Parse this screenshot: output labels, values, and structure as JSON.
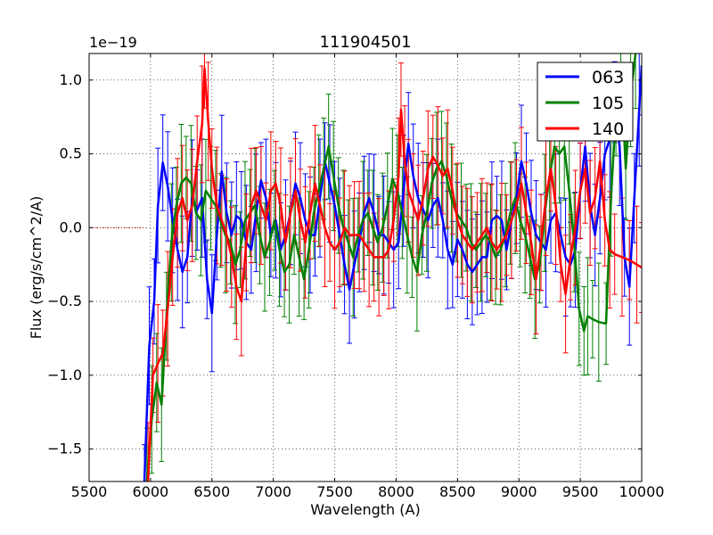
{
  "chart_data": {
    "type": "line",
    "title": "111904501",
    "xlabel": "Wavelength (A)",
    "ylabel": "Flux (erg/s/cm^2/A)",
    "offset_text": "1e−19",
    "xlim": [
      5500,
      10000
    ],
    "ylim": [
      -1.72,
      1.18
    ],
    "x_ticks": [
      5500,
      6000,
      6500,
      7000,
      7500,
      8000,
      8500,
      9000,
      9500,
      10000
    ],
    "x_tick_labels": [
      "5500",
      "6000",
      "6500",
      "7000",
      "7500",
      "8000",
      "8500",
      "9000",
      "9500",
      "10000"
    ],
    "y_ticks": [
      -1.5,
      -1.0,
      -0.5,
      0.0,
      0.5,
      1.0
    ],
    "y_tick_labels": [
      "−1.5",
      "−1.0",
      "−0.5",
      "0.0",
      "0.5",
      "1.0"
    ],
    "grid": true,
    "legend_position": "top-right",
    "reference_line": {
      "y": 0.0,
      "x_range": [
        5500,
        5960
      ],
      "color": "#bf0000",
      "style": "dotted"
    },
    "series": [
      {
        "name": "063",
        "color": "#0000ff",
        "points": [
          [
            5950,
            -1.72
          ],
          [
            5990,
            -0.8
          ],
          [
            6030,
            -0.5
          ],
          [
            6060,
            0.15
          ],
          [
            6100,
            0.44
          ],
          [
            6140,
            0.28
          ],
          [
            6180,
            0.05
          ],
          [
            6220,
            -0.15
          ],
          [
            6260,
            -0.3
          ],
          [
            6300,
            -0.2
          ],
          [
            6340,
            0.2
          ],
          [
            6380,
            0.12
          ],
          [
            6420,
            0.2
          ],
          [
            6460,
            -0.35
          ],
          [
            6500,
            -0.58
          ],
          [
            6540,
            -0.05
          ],
          [
            6580,
            0.38
          ],
          [
            6620,
            0.1
          ],
          [
            6660,
            -0.05
          ],
          [
            6700,
            0.08
          ],
          [
            6740,
            0.05
          ],
          [
            6780,
            -0.1
          ],
          [
            6820,
            -0.15
          ],
          [
            6860,
            0.1
          ],
          [
            6900,
            0.32
          ],
          [
            6940,
            0.2
          ],
          [
            6980,
            -0.05
          ],
          [
            7020,
            0.05
          ],
          [
            7060,
            -0.15
          ],
          [
            7100,
            -0.05
          ],
          [
            7140,
            0.1
          ],
          [
            7180,
            0.3
          ],
          [
            7220,
            0.2
          ],
          [
            7260,
            0.05
          ],
          [
            7300,
            -0.05
          ],
          [
            7340,
            -0.05
          ],
          [
            7380,
            0.2
          ],
          [
            7420,
            0.45
          ],
          [
            7460,
            0.3
          ],
          [
            7500,
            0.15
          ],
          [
            7540,
            -0.05
          ],
          [
            7580,
            -0.25
          ],
          [
            7620,
            -0.42
          ],
          [
            7660,
            -0.25
          ],
          [
            7700,
            -0.1
          ],
          [
            7740,
            0.1
          ],
          [
            7780,
            0.2
          ],
          [
            7820,
            0.1
          ],
          [
            7860,
            -0.05
          ],
          [
            7900,
            -0.05
          ],
          [
            7940,
            -0.1
          ],
          [
            7980,
            -0.15
          ],
          [
            8020,
            -0.1
          ],
          [
            8060,
            0.25
          ],
          [
            8100,
            0.57
          ],
          [
            8140,
            0.35
          ],
          [
            8180,
            0.2
          ],
          [
            8220,
            0.12
          ],
          [
            8260,
            0.05
          ],
          [
            8300,
            0.15
          ],
          [
            8340,
            0.2
          ],
          [
            8380,
            0.05
          ],
          [
            8420,
            -0.15
          ],
          [
            8460,
            -0.25
          ],
          [
            8500,
            -0.08
          ],
          [
            8540,
            -0.15
          ],
          [
            8580,
            -0.25
          ],
          [
            8620,
            -0.3
          ],
          [
            8660,
            -0.25
          ],
          [
            8700,
            -0.2
          ],
          [
            8740,
            -0.2
          ],
          [
            8780,
            0.05
          ],
          [
            8820,
            0.08
          ],
          [
            8860,
            0.05
          ],
          [
            8900,
            -0.15
          ],
          [
            8940,
            0.05
          ],
          [
            8980,
            0.2
          ],
          [
            9020,
            0.45
          ],
          [
            9060,
            0.3
          ],
          [
            9100,
            0.1
          ],
          [
            9140,
            -0.05
          ],
          [
            9180,
            -0.1
          ],
          [
            9220,
            -0.15
          ],
          [
            9260,
            0.05
          ],
          [
            9300,
            0.1
          ],
          [
            9340,
            -0.05
          ],
          [
            9380,
            -0.2
          ],
          [
            9420,
            -0.25
          ],
          [
            9460,
            -0.15
          ],
          [
            9500,
            0.25
          ],
          [
            9540,
            0.55
          ],
          [
            9580,
            0.15
          ],
          [
            9620,
            -0.05
          ],
          [
            9660,
            0.2
          ],
          [
            9700,
            0.5
          ],
          [
            9740,
            0.6
          ],
          [
            9780,
            0.85
          ],
          [
            9820,
            0.55
          ],
          [
            9860,
            -0.2
          ],
          [
            9900,
            -0.4
          ],
          [
            9940,
            0.2
          ],
          [
            9980,
            0.8
          ],
          [
            10000,
            1.1
          ]
        ]
      },
      {
        "name": "105",
        "color": "#008000",
        "points": [
          [
            5970,
            -1.72
          ],
          [
            6010,
            -1.3
          ],
          [
            6050,
            -1.05
          ],
          [
            6090,
            -1.2
          ],
          [
            6130,
            -0.6
          ],
          [
            6170,
            -0.1
          ],
          [
            6210,
            0.15
          ],
          [
            6250,
            0.3
          ],
          [
            6290,
            0.34
          ],
          [
            6330,
            0.3
          ],
          [
            6370,
            0.1
          ],
          [
            6410,
            0.05
          ],
          [
            6450,
            0.25
          ],
          [
            6490,
            0.2
          ],
          [
            6530,
            0.15
          ],
          [
            6570,
            0.05
          ],
          [
            6610,
            -0.05
          ],
          [
            6650,
            -0.1
          ],
          [
            6690,
            -0.25
          ],
          [
            6730,
            -0.15
          ],
          [
            6770,
            0.05
          ],
          [
            6810,
            0.1
          ],
          [
            6850,
            0.15
          ],
          [
            6890,
            -0.05
          ],
          [
            6930,
            -0.2
          ],
          [
            6970,
            -0.1
          ],
          [
            7010,
            0.05
          ],
          [
            7050,
            -0.15
          ],
          [
            7090,
            -0.3
          ],
          [
            7130,
            -0.25
          ],
          [
            7170,
            -0.05
          ],
          [
            7210,
            -0.2
          ],
          [
            7250,
            -0.35
          ],
          [
            7290,
            -0.15
          ],
          [
            7330,
            0.1
          ],
          [
            7370,
            0.25
          ],
          [
            7410,
            0.4
          ],
          [
            7450,
            0.55
          ],
          [
            7490,
            0.35
          ],
          [
            7530,
            0.15
          ],
          [
            7570,
            0.0
          ],
          [
            7610,
            -0.1
          ],
          [
            7650,
            -0.2
          ],
          [
            7690,
            -0.05
          ],
          [
            7730,
            0.05
          ],
          [
            7770,
            0.1
          ],
          [
            7810,
            0.0
          ],
          [
            7850,
            -0.1
          ],
          [
            7890,
            0.0
          ],
          [
            7930,
            0.15
          ],
          [
            7970,
            0.33
          ],
          [
            8010,
            0.25
          ],
          [
            8050,
            0.1
          ],
          [
            8090,
            -0.05
          ],
          [
            8130,
            -0.2
          ],
          [
            8170,
            -0.3
          ],
          [
            8210,
            -0.05
          ],
          [
            8250,
            0.1
          ],
          [
            8290,
            0.3
          ],
          [
            8330,
            0.4
          ],
          [
            8370,
            0.45
          ],
          [
            8410,
            0.35
          ],
          [
            8450,
            0.2
          ],
          [
            8490,
            0.1
          ],
          [
            8530,
            0.05
          ],
          [
            8570,
            0.0
          ],
          [
            8610,
            -0.1
          ],
          [
            8650,
            -0.15
          ],
          [
            8690,
            -0.1
          ],
          [
            8730,
            -0.05
          ],
          [
            8770,
            -0.1
          ],
          [
            8810,
            -0.2
          ],
          [
            8850,
            -0.15
          ],
          [
            8890,
            -0.05
          ],
          [
            8930,
            0.1
          ],
          [
            8970,
            0.2
          ],
          [
            9010,
            0.05
          ],
          [
            9050,
            -0.05
          ],
          [
            9090,
            -0.2
          ],
          [
            9130,
            -0.35
          ],
          [
            9170,
            -0.25
          ],
          [
            9210,
            0.1
          ],
          [
            9250,
            0.35
          ],
          [
            9290,
            0.55
          ],
          [
            9330,
            0.5
          ],
          [
            9370,
            0.55
          ],
          [
            9410,
            0.25
          ],
          [
            9450,
            -0.1
          ],
          [
            9490,
            -0.55
          ],
          [
            9530,
            -0.7
          ],
          [
            9560,
            -0.6
          ],
          [
            9600,
            -0.62
          ],
          [
            9650,
            -0.64
          ],
          [
            9710,
            -0.65
          ],
          [
            9750,
            0.2
          ],
          [
            9790,
            0.8
          ],
          [
            9830,
            1.1
          ],
          [
            9870,
            0.4
          ],
          [
            9910,
            0.9
          ],
          [
            9950,
            1.18
          ]
        ]
      },
      {
        "name": "140",
        "color": "#ff0000",
        "points": [
          [
            5980,
            -1.72
          ],
          [
            6020,
            -1.0
          ],
          [
            6060,
            -0.92
          ],
          [
            6100,
            -0.85
          ],
          [
            6140,
            -0.55
          ],
          [
            6180,
            -0.2
          ],
          [
            6220,
            0.1
          ],
          [
            6260,
            0.2
          ],
          [
            6300,
            0.05
          ],
          [
            6340,
            0.15
          ],
          [
            6380,
            0.45
          ],
          [
            6420,
            0.7
          ],
          [
            6440,
            1.08
          ],
          [
            6470,
            0.72
          ],
          [
            6500,
            0.4
          ],
          [
            6540,
            0.15
          ],
          [
            6580,
            0.05
          ],
          [
            6620,
            -0.05
          ],
          [
            6660,
            -0.2
          ],
          [
            6700,
            -0.4
          ],
          [
            6740,
            -0.5
          ],
          [
            6780,
            -0.1
          ],
          [
            6820,
            0.15
          ],
          [
            6860,
            0.25
          ],
          [
            6900,
            0.15
          ],
          [
            6940,
            0.05
          ],
          [
            6980,
            0.25
          ],
          [
            7020,
            0.3
          ],
          [
            7060,
            0.15
          ],
          [
            7100,
            -0.1
          ],
          [
            7140,
            0.1
          ],
          [
            7180,
            0.25
          ],
          [
            7220,
            0.05
          ],
          [
            7260,
            -0.1
          ],
          [
            7300,
            0.1
          ],
          [
            7340,
            0.3
          ],
          [
            7380,
            0.15
          ],
          [
            7420,
            0.0
          ],
          [
            7460,
            -0.1
          ],
          [
            7500,
            -0.15
          ],
          [
            7540,
            -0.1
          ],
          [
            7580,
            0.0
          ],
          [
            7620,
            -0.05
          ],
          [
            7660,
            -0.05
          ],
          [
            7700,
            -0.05
          ],
          [
            7740,
            -0.1
          ],
          [
            7780,
            -0.15
          ],
          [
            7820,
            -0.2
          ],
          [
            7860,
            -0.2
          ],
          [
            7900,
            -0.2
          ],
          [
            7940,
            -0.15
          ],
          [
            7980,
            0.05
          ],
          [
            8020,
            0.35
          ],
          [
            8040,
            0.8
          ],
          [
            8070,
            0.45
          ],
          [
            8100,
            0.25
          ],
          [
            8140,
            0.15
          ],
          [
            8180,
            0.05
          ],
          [
            8220,
            0.2
          ],
          [
            8260,
            0.4
          ],
          [
            8300,
            0.48
          ],
          [
            8340,
            0.42
          ],
          [
            8380,
            0.35
          ],
          [
            8420,
            0.4
          ],
          [
            8460,
            0.25
          ],
          [
            8500,
            0.05
          ],
          [
            8540,
            -0.05
          ],
          [
            8580,
            -0.1
          ],
          [
            8620,
            -0.15
          ],
          [
            8660,
            -0.1
          ],
          [
            8700,
            -0.05
          ],
          [
            8740,
            0.0
          ],
          [
            8780,
            -0.1
          ],
          [
            8820,
            -0.15
          ],
          [
            8860,
            -0.1
          ],
          [
            8900,
            -0.05
          ],
          [
            8940,
            0.05
          ],
          [
            8980,
            0.15
          ],
          [
            9020,
            0.3
          ],
          [
            9060,
            0.1
          ],
          [
            9100,
            -0.1
          ],
          [
            9140,
            -0.35
          ],
          [
            9180,
            -0.1
          ],
          [
            9220,
            0.2
          ],
          [
            9260,
            0.4
          ],
          [
            9300,
            0.15
          ],
          [
            9340,
            -0.25
          ],
          [
            9380,
            -0.45
          ],
          [
            9420,
            -0.2
          ],
          [
            9460,
            0.0
          ],
          [
            9500,
            0.25
          ],
          [
            9540,
            0.4
          ],
          [
            9580,
            0.1
          ],
          [
            9620,
            0.2
          ],
          [
            9660,
            0.45
          ],
          [
            9700,
            0.05
          ],
          [
            9740,
            -0.15
          ],
          [
            9780,
            -0.18
          ],
          [
            9840,
            -0.2
          ],
          [
            9900,
            -0.22
          ],
          [
            9960,
            -0.25
          ],
          [
            10000,
            -0.27
          ]
        ]
      }
    ]
  }
}
